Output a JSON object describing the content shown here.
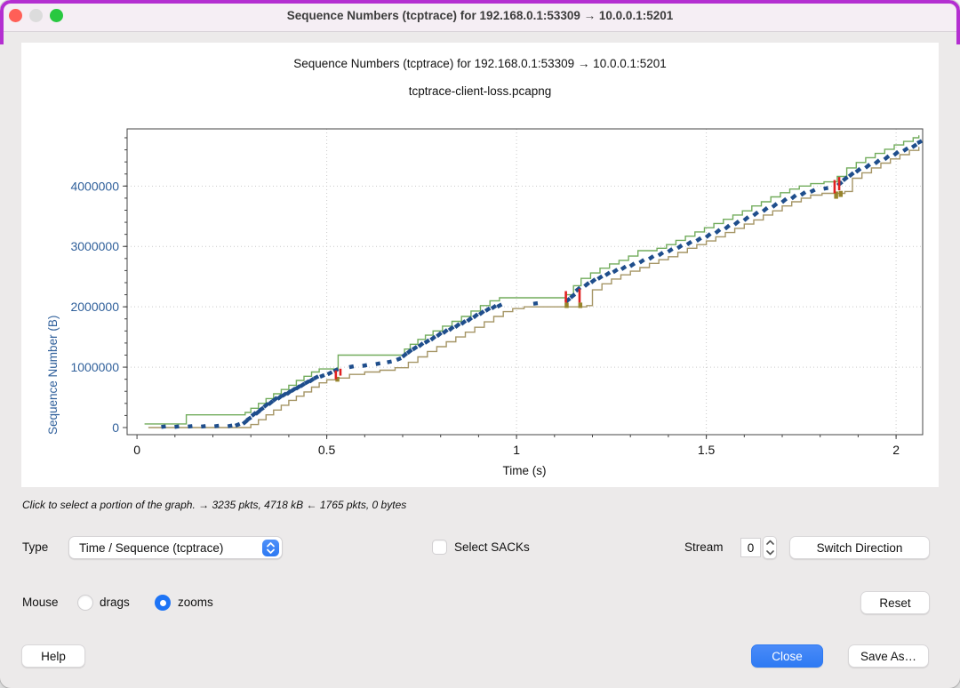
{
  "window": {
    "title": "Sequence Numbers (tcptrace) for 192.168.0.1:53309 → 10.0.0.1:5201"
  },
  "hint": "Click to select a portion of the graph. → 3235 pkts, 4718 kB ← 1765 pkts, 0 bytes",
  "controls": {
    "type_label": "Type",
    "type_value": "Time / Sequence (tcptrace)",
    "select_sacks_label": "Select SACKs",
    "stream_label": "Stream",
    "stream_value": "0",
    "switch_direction_label": "Switch Direction",
    "mouse_label": "Mouse",
    "drags_label": "drags",
    "zooms_label": "zooms",
    "reset_label": "Reset",
    "help_label": "Help",
    "close_label": "Close",
    "save_as_label": "Save As…"
  },
  "colors": {
    "accent_blue": "#2e7af3",
    "traffic_close": "#ff5f57",
    "traffic_minimize": "#dcdcdc",
    "traffic_zoom": "#28c840",
    "axis_label_blue": "#30609b"
  },
  "chart_data": {
    "type": "line",
    "title": "Sequence Numbers (tcptrace) for 192.168.0.1:53309 → 10.0.0.1:5201",
    "subtitle": "tcptrace-client-loss.pcapng",
    "xlabel": "Time (s)",
    "ylabel": "Sequence Number (B)",
    "xlim": [
      -0.026,
      2.07
    ],
    "ylim": [
      -118000,
      4947000
    ],
    "x_major_ticks": [
      0,
      0.5,
      1,
      1.5,
      2
    ],
    "x_major_labels": [
      "0",
      "0.5",
      "1",
      "1.5",
      "2"
    ],
    "x_minor_step": 0.1,
    "y_major_ticks": [
      0,
      1000000,
      2000000,
      3000000,
      4000000
    ],
    "y_major_labels": [
      "0",
      "1000000",
      "2000000",
      "3000000",
      "4000000"
    ],
    "y_minor_step": 200000,
    "grid": "dotted-at-majors",
    "legend": "none",
    "seq_unit": 1000000,
    "series": [
      {
        "name": "receive-window",
        "color": "#72ac5c",
        "kind": "step",
        "width": 1.4,
        "points": [
          [
            0.02,
            0.06
          ],
          [
            0.13,
            0.21
          ],
          [
            0.285,
            0.25
          ],
          [
            0.3,
            0.32
          ],
          [
            0.32,
            0.4
          ],
          [
            0.34,
            0.48
          ],
          [
            0.36,
            0.56
          ],
          [
            0.38,
            0.63
          ],
          [
            0.4,
            0.7
          ],
          [
            0.42,
            0.78
          ],
          [
            0.44,
            0.85
          ],
          [
            0.46,
            0.92
          ],
          [
            0.48,
            0.97
          ],
          [
            0.53,
            1.2
          ],
          [
            0.705,
            1.3
          ],
          [
            0.72,
            1.38
          ],
          [
            0.74,
            1.46
          ],
          [
            0.76,
            1.53
          ],
          [
            0.78,
            1.6
          ],
          [
            0.805,
            1.68
          ],
          [
            0.83,
            1.76
          ],
          [
            0.855,
            1.84
          ],
          [
            0.88,
            1.93
          ],
          [
            0.905,
            2.02
          ],
          [
            0.93,
            2.1
          ],
          [
            0.955,
            2.15
          ],
          [
            1.13,
            2.2
          ],
          [
            1.15,
            2.35
          ],
          [
            1.17,
            2.47
          ],
          [
            1.195,
            2.56
          ],
          [
            1.22,
            2.64
          ],
          [
            1.245,
            2.71
          ],
          [
            1.27,
            2.77
          ],
          [
            1.295,
            2.84
          ],
          [
            1.32,
            2.93
          ],
          [
            1.37,
            2.97
          ],
          [
            1.395,
            3.03
          ],
          [
            1.42,
            3.1
          ],
          [
            1.445,
            3.17
          ],
          [
            1.47,
            3.24
          ],
          [
            1.495,
            3.31
          ],
          [
            1.52,
            3.38
          ],
          [
            1.545,
            3.45
          ],
          [
            1.57,
            3.52
          ],
          [
            1.595,
            3.59
          ],
          [
            1.62,
            3.67
          ],
          [
            1.645,
            3.74
          ],
          [
            1.67,
            3.82
          ],
          [
            1.695,
            3.89
          ],
          [
            1.72,
            3.95
          ],
          [
            1.745,
            4.0
          ],
          [
            1.775,
            4.04
          ],
          [
            1.81,
            4.07
          ],
          [
            1.845,
            4.16
          ],
          [
            1.87,
            4.3
          ],
          [
            1.895,
            4.39
          ],
          [
            1.92,
            4.47
          ],
          [
            1.945,
            4.54
          ],
          [
            1.97,
            4.61
          ],
          [
            1.995,
            4.68
          ],
          [
            2.02,
            4.74
          ],
          [
            2.045,
            4.8
          ],
          [
            2.06,
            4.84
          ]
        ]
      },
      {
        "name": "ack-line",
        "color": "#a59565",
        "kind": "step",
        "width": 1.4,
        "points": [
          [
            0.03,
            0.0
          ],
          [
            0.3,
            0.05
          ],
          [
            0.32,
            0.13
          ],
          [
            0.34,
            0.21
          ],
          [
            0.36,
            0.29
          ],
          [
            0.38,
            0.37
          ],
          [
            0.4,
            0.45
          ],
          [
            0.42,
            0.52
          ],
          [
            0.44,
            0.59
          ],
          [
            0.46,
            0.67
          ],
          [
            0.48,
            0.74
          ],
          [
            0.5,
            0.79
          ],
          [
            0.525,
            0.82
          ],
          [
            0.56,
            0.88
          ],
          [
            0.6,
            0.92
          ],
          [
            0.64,
            0.95
          ],
          [
            0.68,
            0.99
          ],
          [
            0.715,
            1.08
          ],
          [
            0.74,
            1.17
          ],
          [
            0.765,
            1.26
          ],
          [
            0.79,
            1.34
          ],
          [
            0.815,
            1.42
          ],
          [
            0.84,
            1.5
          ],
          [
            0.865,
            1.58
          ],
          [
            0.89,
            1.66
          ],
          [
            0.915,
            1.75
          ],
          [
            0.94,
            1.84
          ],
          [
            0.965,
            1.92
          ],
          [
            0.99,
            1.97
          ],
          [
            1.02,
            2.0
          ],
          [
            1.185,
            2.02
          ],
          [
            1.2,
            2.28
          ],
          [
            1.225,
            2.38
          ],
          [
            1.25,
            2.46
          ],
          [
            1.275,
            2.53
          ],
          [
            1.3,
            2.59
          ],
          [
            1.325,
            2.65
          ],
          [
            1.35,
            2.72
          ],
          [
            1.375,
            2.78
          ],
          [
            1.4,
            2.83
          ],
          [
            1.425,
            2.9
          ],
          [
            1.45,
            2.97
          ],
          [
            1.475,
            3.03
          ],
          [
            1.5,
            3.09
          ],
          [
            1.525,
            3.16
          ],
          [
            1.55,
            3.23
          ],
          [
            1.575,
            3.3
          ],
          [
            1.6,
            3.37
          ],
          [
            1.625,
            3.44
          ],
          [
            1.65,
            3.52
          ],
          [
            1.675,
            3.59
          ],
          [
            1.7,
            3.67
          ],
          [
            1.725,
            3.74
          ],
          [
            1.75,
            3.8
          ],
          [
            1.775,
            3.85
          ],
          [
            1.805,
            3.88
          ],
          [
            1.865,
            3.91
          ],
          [
            1.885,
            4.13
          ],
          [
            1.91,
            4.22
          ],
          [
            1.935,
            4.3
          ],
          [
            1.96,
            4.38
          ],
          [
            1.985,
            4.45
          ],
          [
            2.01,
            4.52
          ],
          [
            2.035,
            4.59
          ],
          [
            2.06,
            4.65
          ]
        ]
      },
      {
        "name": "data-segments",
        "color": "#1f4e8c",
        "kind": "ticks",
        "width": 4.4,
        "points": [
          [
            0.07,
            0.01,
            0.02
          ],
          [
            0.105,
            0.01,
            0.02
          ],
          [
            0.14,
            0.015,
            0.025
          ],
          [
            0.175,
            0.015,
            0.025
          ],
          [
            0.21,
            0.02,
            0.03
          ],
          [
            0.245,
            0.02,
            0.035
          ],
          [
            0.265,
            0.03,
            0.06
          ],
          [
            0.285,
            0.06,
            0.12
          ],
          [
            0.295,
            0.12,
            0.17
          ],
          [
            0.308,
            0.19,
            0.25
          ],
          [
            0.318,
            0.22,
            0.28
          ],
          [
            0.328,
            0.28,
            0.33
          ],
          [
            0.34,
            0.34,
            0.4
          ],
          [
            0.352,
            0.38,
            0.44
          ],
          [
            0.364,
            0.44,
            0.5
          ],
          [
            0.376,
            0.47,
            0.53
          ],
          [
            0.388,
            0.52,
            0.57
          ],
          [
            0.4,
            0.55,
            0.61
          ],
          [
            0.412,
            0.6,
            0.65
          ],
          [
            0.424,
            0.64,
            0.69
          ],
          [
            0.436,
            0.68,
            0.73
          ],
          [
            0.448,
            0.73,
            0.77
          ],
          [
            0.46,
            0.76,
            0.81
          ],
          [
            0.472,
            0.81,
            0.85
          ],
          [
            0.488,
            0.84,
            0.87
          ],
          [
            0.508,
            0.88,
            0.92
          ],
          [
            0.524,
            0.93,
            0.97
          ],
          [
            0.565,
            1.0,
            1.015
          ],
          [
            0.6,
            1.02,
            1.035
          ],
          [
            0.635,
            1.05,
            1.065
          ],
          [
            0.665,
            1.08,
            1.095
          ],
          [
            0.69,
            1.12,
            1.15
          ],
          [
            0.705,
            1.17,
            1.23
          ],
          [
            0.718,
            1.23,
            1.29
          ],
          [
            0.732,
            1.29,
            1.34
          ],
          [
            0.748,
            1.34,
            1.4
          ],
          [
            0.764,
            1.4,
            1.45
          ],
          [
            0.78,
            1.45,
            1.51
          ],
          [
            0.796,
            1.51,
            1.57
          ],
          [
            0.812,
            1.56,
            1.62
          ],
          [
            0.828,
            1.61,
            1.67
          ],
          [
            0.844,
            1.66,
            1.72
          ],
          [
            0.86,
            1.71,
            1.77
          ],
          [
            0.876,
            1.76,
            1.82
          ],
          [
            0.892,
            1.82,
            1.88
          ],
          [
            0.908,
            1.87,
            1.93
          ],
          [
            0.924,
            1.93,
            1.98
          ],
          [
            0.94,
            1.97,
            2.02
          ],
          [
            0.955,
            2.0,
            2.04
          ],
          [
            1.05,
            2.05,
            2.06
          ],
          [
            1.135,
            2.08,
            2.14
          ],
          [
            1.148,
            2.15,
            2.21
          ],
          [
            1.162,
            2.26,
            2.32
          ],
          [
            1.185,
            2.34,
            2.4
          ],
          [
            1.202,
            2.4,
            2.46
          ],
          [
            1.22,
            2.46,
            2.51
          ],
          [
            1.24,
            2.52,
            2.57
          ],
          [
            1.26,
            2.57,
            2.62
          ],
          [
            1.282,
            2.62,
            2.67
          ],
          [
            1.305,
            2.67,
            2.72
          ],
          [
            1.33,
            2.73,
            2.78
          ],
          [
            1.355,
            2.79,
            2.84
          ],
          [
            1.38,
            2.85,
            2.9
          ],
          [
            1.405,
            2.91,
            2.96
          ],
          [
            1.43,
            2.97,
            3.02
          ],
          [
            1.455,
            3.03,
            3.08
          ],
          [
            1.48,
            3.09,
            3.14
          ],
          [
            1.505,
            3.15,
            3.21
          ],
          [
            1.53,
            3.22,
            3.28
          ],
          [
            1.555,
            3.29,
            3.35
          ],
          [
            1.58,
            3.36,
            3.42
          ],
          [
            1.605,
            3.43,
            3.49
          ],
          [
            1.63,
            3.51,
            3.57
          ],
          [
            1.655,
            3.58,
            3.64
          ],
          [
            1.68,
            3.65,
            3.71
          ],
          [
            1.705,
            3.73,
            3.79
          ],
          [
            1.73,
            3.79,
            3.85
          ],
          [
            1.755,
            3.85,
            3.9
          ],
          [
            1.78,
            3.9,
            3.94
          ],
          [
            1.815,
            3.955,
            3.97
          ],
          [
            1.852,
            4.01,
            4.07
          ],
          [
            1.866,
            4.09,
            4.15
          ],
          [
            1.882,
            4.16,
            4.22
          ],
          [
            1.9,
            4.23,
            4.29
          ],
          [
            1.925,
            4.3,
            4.36
          ],
          [
            1.95,
            4.37,
            4.43
          ],
          [
            1.975,
            4.44,
            4.5
          ],
          [
            2.0,
            4.51,
            4.57
          ],
          [
            2.025,
            4.58,
            4.63
          ],
          [
            2.048,
            4.64,
            4.69
          ],
          [
            2.062,
            4.71,
            4.75
          ]
        ]
      },
      {
        "name": "sack-marks",
        "color": "#97842c",
        "kind": "bars",
        "width": 4.5,
        "points": [
          [
            0.528,
            0.76,
            0.84
          ],
          [
            1.132,
            1.98,
            2.07
          ],
          [
            1.168,
            1.98,
            2.07
          ],
          [
            1.842,
            3.79,
            3.91
          ],
          [
            1.854,
            3.82,
            3.92
          ]
        ]
      },
      {
        "name": "retransmissions",
        "color": "#e02020",
        "kind": "bars",
        "width": 2.6,
        "points": [
          [
            0.524,
            0.8,
            0.945
          ],
          [
            0.536,
            0.86,
            0.975
          ],
          [
            1.13,
            2.07,
            2.26
          ],
          [
            1.166,
            2.07,
            2.3
          ],
          [
            1.838,
            3.88,
            4.1
          ],
          [
            1.85,
            3.93,
            4.15
          ]
        ]
      }
    ]
  }
}
